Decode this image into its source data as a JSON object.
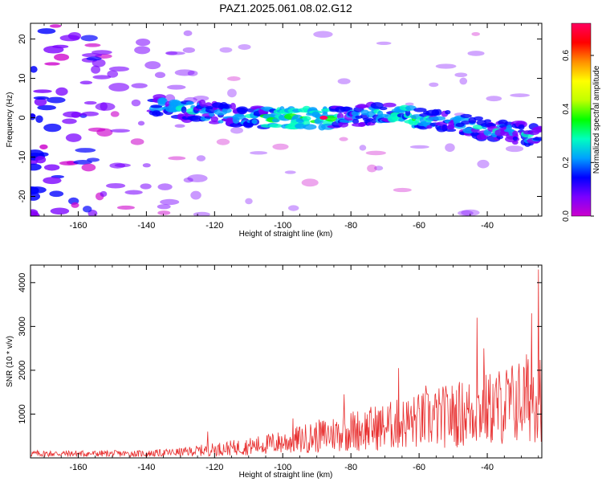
{
  "page_title": "PAZ1.2025.061.08.02.G12",
  "chart_data": [
    {
      "type": "heatmap",
      "xlabel": "Height of straight line (km)",
      "ylabel": "Frequency (Hz)",
      "xlim": [
        -174,
        -24
      ],
      "ylim": [
        -25,
        24
      ],
      "xticks": [
        -160,
        -140,
        -120,
        -100,
        -80,
        -60,
        -40
      ],
      "yticks": [
        -20,
        -10,
        0,
        10,
        20
      ],
      "colorbar": {
        "label": "Normalized spectral amplitude",
        "range": [
          0.0,
          0.72
        ],
        "ticks": [
          0.0,
          0.2,
          0.4,
          0.6
        ],
        "colors": [
          "#cc00cc",
          "#7a00ff",
          "#0000ff",
          "#00a0ff",
          "#00ffc0",
          "#00ff00",
          "#c0ff00",
          "#ffff00",
          "#ff9000",
          "#ff0000",
          "#ff0060"
        ]
      },
      "ridge": {
        "description_x": [
          -135,
          -120,
          -105,
          -95,
          -88,
          -80,
          -70,
          -60,
          -50,
          -40,
          -30,
          -24
        ],
        "frequency_hz": [
          3,
          1,
          0,
          0,
          0,
          0.5,
          1,
          0,
          -1,
          -3,
          -4,
          -5
        ]
      },
      "peak": {
        "x": -88,
        "y": 0,
        "value": 0.72
      }
    },
    {
      "type": "line",
      "xlabel": "Height of straight line (km)",
      "ylabel": "SNR (10 * v/v)",
      "xlim": [
        -174,
        -24
      ],
      "ylim": [
        0,
        4400
      ],
      "xticks": [
        -160,
        -140,
        -120,
        -100,
        -80,
        -60,
        -40
      ],
      "yticks": [
        1000,
        2000,
        3000,
        4000
      ],
      "color": "#e83030",
      "envelope": {
        "x": [
          -174,
          -140,
          -130,
          -120,
          -110,
          -100,
          -90,
          -80,
          -70,
          -60,
          -50,
          -40,
          -30,
          -24
        ],
        "y": [
          150,
          150,
          200,
          300,
          400,
          550,
          750,
          950,
          1100,
          1300,
          1500,
          1700,
          2000,
          2400
        ]
      },
      "spikes": [
        {
          "x": -122,
          "y": 600
        },
        {
          "x": -97,
          "y": 900
        },
        {
          "x": -82,
          "y": 1450
        },
        {
          "x": -66,
          "y": 2050
        },
        {
          "x": -58,
          "y": 1650
        },
        {
          "x": -43,
          "y": 3200
        },
        {
          "x": -41,
          "y": 2500
        },
        {
          "x": -27,
          "y": 3300
        },
        {
          "x": -25,
          "y": 4300
        }
      ]
    }
  ]
}
